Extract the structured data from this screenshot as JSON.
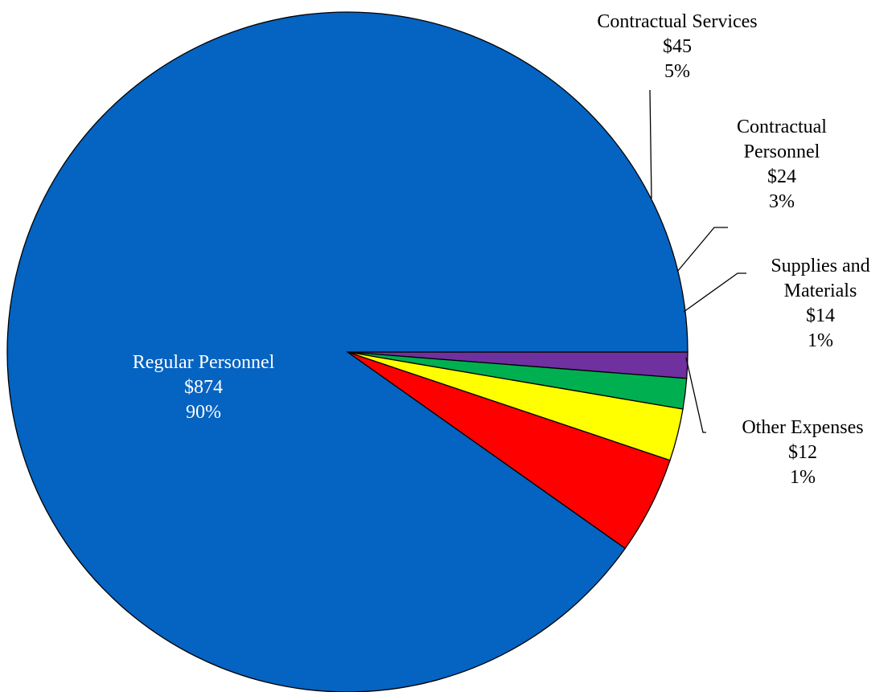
{
  "chart_data": {
    "type": "pie",
    "title": "",
    "slices": [
      {
        "name": "Regular Personnel",
        "value": 874,
        "value_label": "$874",
        "percent_label": "90%",
        "color": "#0563C1",
        "label_color": "#FFFFFF"
      },
      {
        "name": "Contractual Services",
        "value": 45,
        "value_label": "$45",
        "percent_label": "5%",
        "color": "#FF0000",
        "label_color": "#000000"
      },
      {
        "name": "Contractual Personnel",
        "value": 24,
        "value_label": "$24",
        "percent_label": "3%",
        "color": "#FFFF00",
        "label_color": "#000000"
      },
      {
        "name": "Supplies and Materials",
        "value": 14,
        "value_label": "$14",
        "percent_label": "1%",
        "color": "#00B050",
        "label_color": "#000000"
      },
      {
        "name": "Other Expenses",
        "value": 12,
        "value_label": "$12",
        "percent_label": "1%",
        "color": "#7030A0",
        "label_color": "#000000"
      }
    ],
    "labels": [
      {
        "lines": [
          "Regular Personnel",
          "$874",
          "90%"
        ]
      },
      {
        "lines": [
          "Contractual Services",
          "$45",
          "5%"
        ]
      },
      {
        "lines": [
          "Contractual",
          "Personnel",
          "$24",
          "3%"
        ]
      },
      {
        "lines": [
          "Supplies and",
          "Materials",
          "$14",
          "1%"
        ]
      },
      {
        "lines": [
          "Other Expenses",
          "$12",
          "1%"
        ]
      }
    ],
    "legend": "none"
  }
}
